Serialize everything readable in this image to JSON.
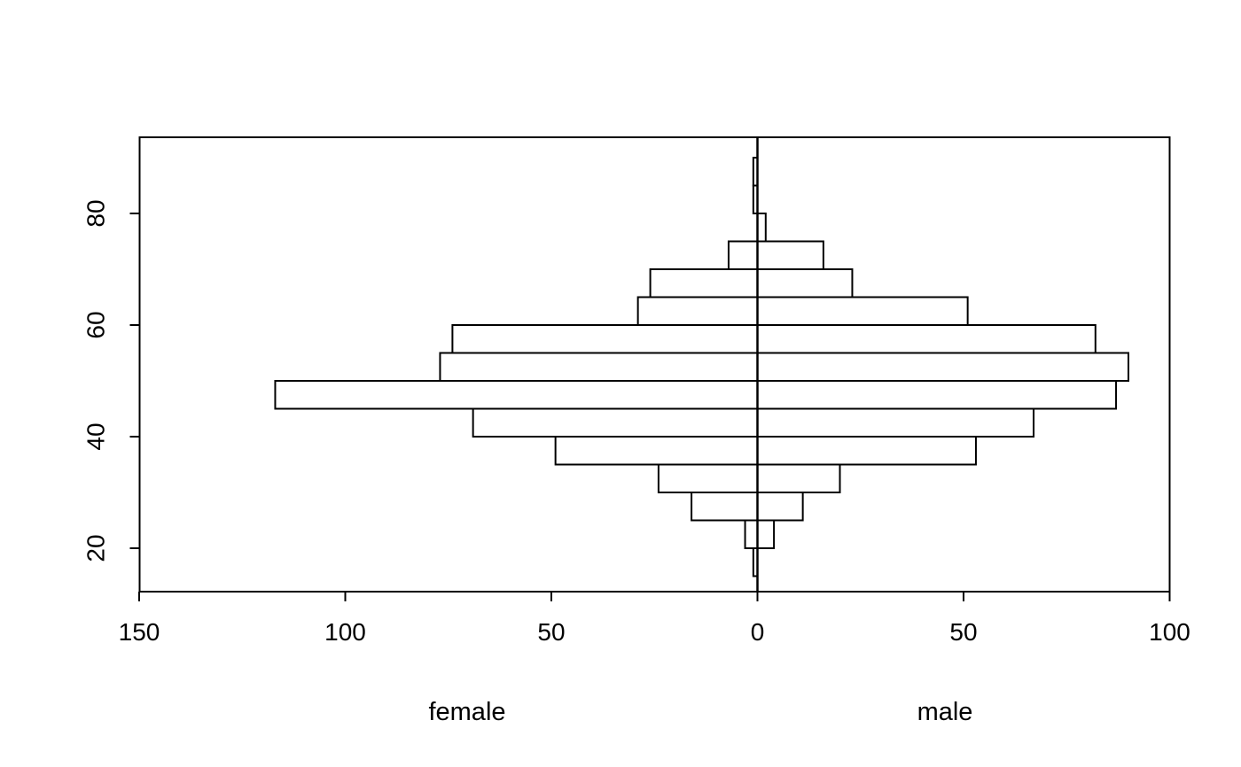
{
  "figure": {
    "background_color": "#ffffff",
    "line_color": "#000000",
    "bar_fill_color": "#ffffff"
  },
  "chart_data": {
    "type": "bar",
    "subtype": "population_pyramid_back_to_back_histogram",
    "title": "",
    "xlabel_left": "female",
    "xlabel_right": "male",
    "ylabel": "",
    "orientation": "horizontal",
    "grid": false,
    "legend": false,
    "age_bin_width": 5,
    "age_min": 15,
    "age_max": 90,
    "y_axis": {
      "ticks": [
        20,
        40,
        60,
        80
      ]
    },
    "x_axis": {
      "female_ticks": [
        150,
        100,
        50
      ],
      "zero_tick_label": "0",
      "male_ticks": [
        50,
        100
      ],
      "female_axis_max": 150,
      "male_axis_max": 100
    },
    "bins": [
      {
        "age_range": "15-20",
        "female": 1,
        "male": 0
      },
      {
        "age_range": "20-25",
        "female": 3,
        "male": 4
      },
      {
        "age_range": "25-30",
        "female": 16,
        "male": 11
      },
      {
        "age_range": "30-35",
        "female": 24,
        "male": 20
      },
      {
        "age_range": "35-40",
        "female": 49,
        "male": 53
      },
      {
        "age_range": "40-45",
        "female": 69,
        "male": 67
      },
      {
        "age_range": "45-50",
        "female": 117,
        "male": 87
      },
      {
        "age_range": "50-55",
        "female": 77,
        "male": 90
      },
      {
        "age_range": "55-60",
        "female": 74,
        "male": 82
      },
      {
        "age_range": "60-65",
        "female": 29,
        "male": 51
      },
      {
        "age_range": "65-70",
        "female": 26,
        "male": 23
      },
      {
        "age_range": "70-75",
        "female": 7,
        "male": 16
      },
      {
        "age_range": "75-80",
        "female": 0,
        "male": 2
      },
      {
        "age_range": "80-85",
        "female": 1,
        "male": 0
      },
      {
        "age_range": "85-90",
        "female": 1,
        "male": 0
      }
    ]
  }
}
